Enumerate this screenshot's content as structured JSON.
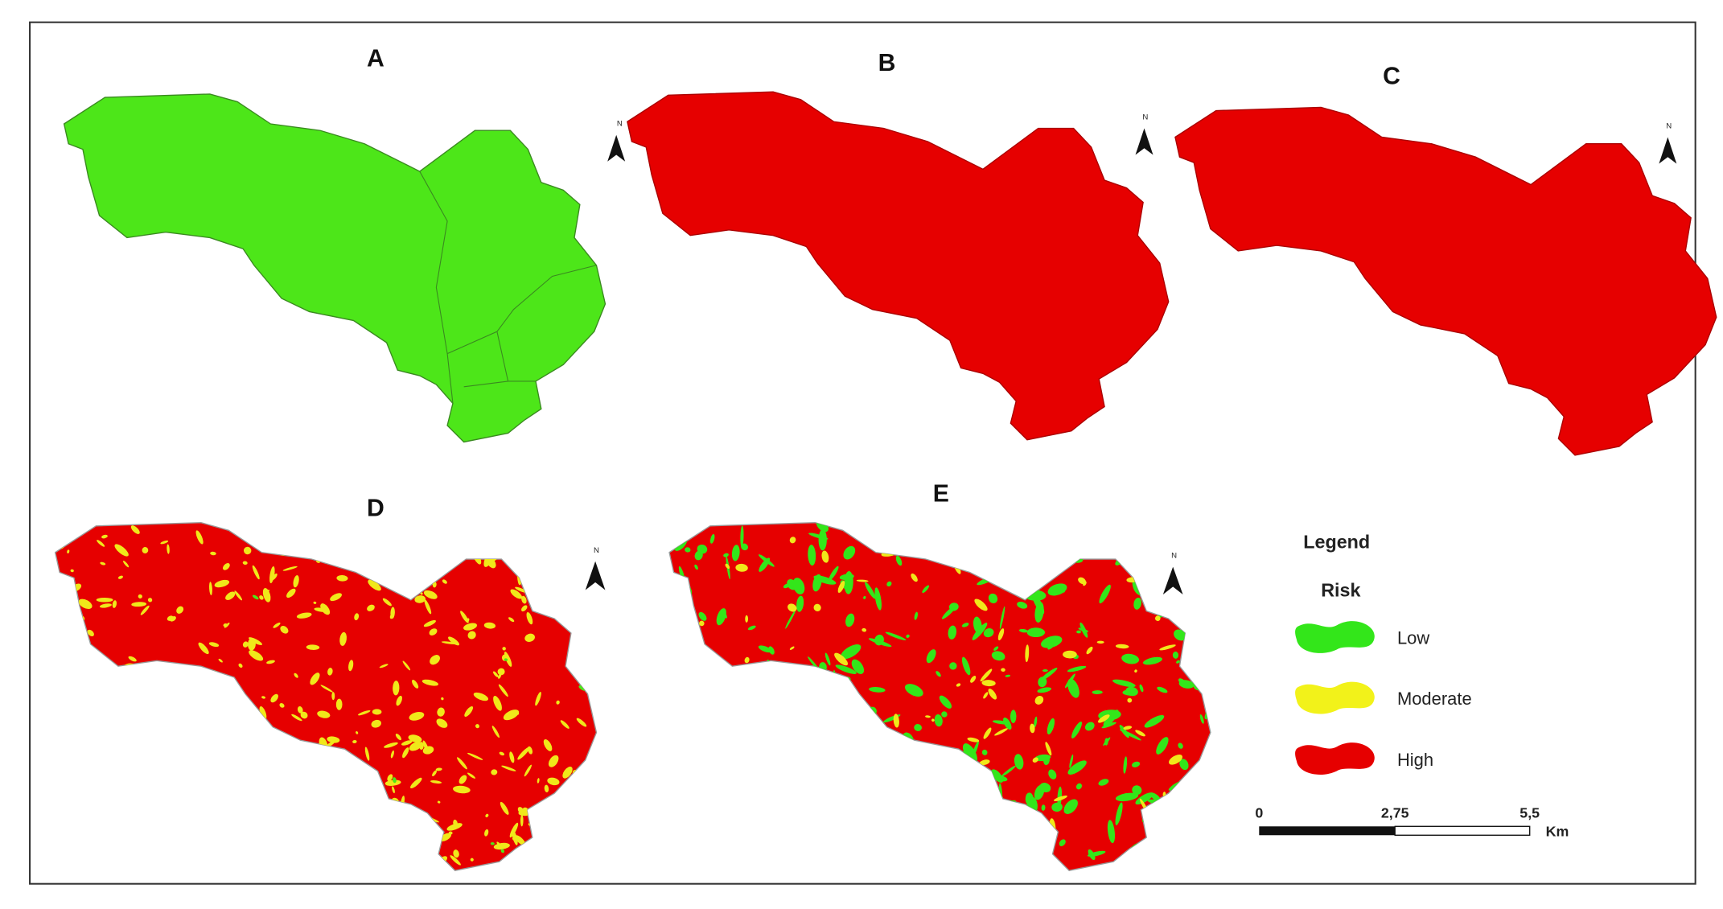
{
  "panels": [
    {
      "label": "A",
      "north": "N"
    },
    {
      "label": "B",
      "north": "N"
    },
    {
      "label": "C",
      "north": "N"
    },
    {
      "label": "D",
      "north": "N"
    },
    {
      "label": "E",
      "north": "N"
    }
  ],
  "legend": {
    "title": "Legend",
    "subtitle": "Risk",
    "items": [
      {
        "label": "Low",
        "color": "#33e61a"
      },
      {
        "label": "Moderate",
        "color": "#f2f21a"
      },
      {
        "label": "High",
        "color": "#e60000"
      }
    ]
  },
  "scale_bar": {
    "ticks": [
      "0",
      "2,75",
      "5,5"
    ],
    "unit": "Km"
  }
}
